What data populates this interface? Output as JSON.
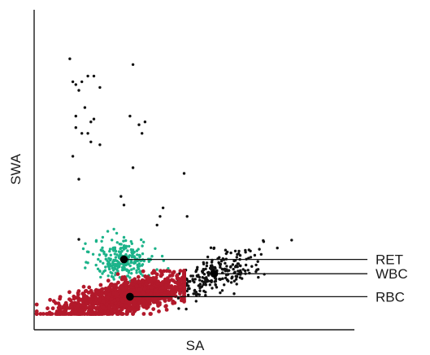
{
  "chart_data": {
    "type": "scatter",
    "title": "",
    "xlabel": "SA",
    "ylabel": "SWA",
    "xlim": [
      0,
      100
    ],
    "ylim": [
      0,
      100
    ],
    "grid": false,
    "tick_labels": [],
    "colors": {
      "RBC": "#b3192b",
      "RET": "#1cb38a",
      "WBC": "#111111",
      "scatter_black": "#111111"
    },
    "series": [
      {
        "name": "RET",
        "center": [
          25,
          18
        ],
        "spread": [
          5,
          3.5
        ],
        "count": 260,
        "color": "#1cb38a"
      },
      {
        "name": "WBC",
        "center": [
          55,
          13
        ],
        "spread": [
          8,
          3.5
        ],
        "count": 260,
        "color": "#111111"
      },
      {
        "name": "RBC",
        "center": [
          27,
          5
        ],
        "spread": [
          12,
          2.8
        ],
        "count": 1400,
        "color": "#b3192b"
      },
      {
        "name": "",
        "color": "#111111",
        "points": [
          [
            7,
            88
          ],
          [
            8,
            80
          ],
          [
            9,
            79
          ],
          [
            11,
            80
          ],
          [
            10,
            77
          ],
          [
            13,
            82
          ],
          [
            15,
            82
          ],
          [
            17,
            78
          ],
          [
            28,
            86
          ],
          [
            9,
            68
          ],
          [
            12,
            71
          ],
          [
            15,
            67
          ],
          [
            14,
            66
          ],
          [
            9,
            64
          ],
          [
            11,
            62
          ],
          [
            13,
            62
          ],
          [
            14,
            59
          ],
          [
            8,
            54
          ],
          [
            30,
            65
          ],
          [
            27,
            68
          ],
          [
            31,
            62
          ],
          [
            32,
            66
          ],
          [
            28,
            50
          ],
          [
            17,
            58
          ],
          [
            10,
            46
          ],
          [
            24,
            40
          ],
          [
            25,
            37
          ],
          [
            45,
            48
          ],
          [
            38,
            36
          ],
          [
            37,
            33
          ],
          [
            36,
            30
          ],
          [
            46,
            33
          ],
          [
            10,
            25
          ],
          [
            76,
            22
          ],
          [
            46,
            7
          ],
          [
            36,
            7
          ]
        ]
      }
    ],
    "annotations": [
      {
        "label": "RET",
        "anchor": [
          25,
          18
        ]
      },
      {
        "label": "WBC",
        "anchor": [
          55,
          13
        ]
      },
      {
        "label": "RBC",
        "anchor": [
          27,
          5
        ]
      }
    ]
  }
}
